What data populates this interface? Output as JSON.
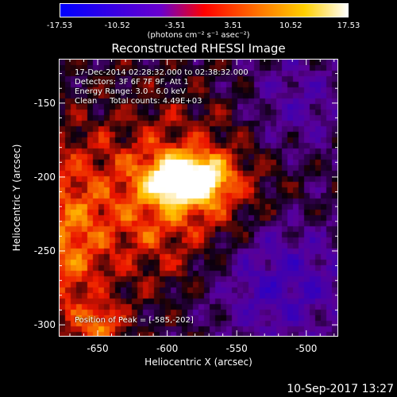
{
  "colorbar": {
    "min": -17.53,
    "max": 17.53,
    "tick_labels": [
      "-17.53",
      "-10.52",
      "-3.51",
      "3.51",
      "10.52",
      "17.53"
    ],
    "units": "(photons cm⁻² s⁻¹ asec⁻²)",
    "colors": [
      "#0000ff",
      "#7f00ff",
      "#ff0000",
      "#ff8000",
      "#ffff00",
      "#ffffff"
    ]
  },
  "title": "Reconstructed RHESSI Image",
  "info": {
    "time_range": "17-Dec-2014 02:28:32.000 to 02:38:32.000",
    "detectors": "Detectors: 3F 6F 7F 9F, Att 1",
    "energy": "Energy Range: 3.0 - 6.0 keV",
    "clean": "Clean     Total counts: 4.49E+03",
    "peak": "Position of Peak = [-585,-202]"
  },
  "axes": {
    "xlabel": "Heliocentric X (arcsec)",
    "ylabel": "Heliocentric Y (arcsec)",
    "xlim": [
      -678,
      -477
    ],
    "ylim": [
      -308,
      -120
    ],
    "xticks": [
      -650,
      -600,
      -550,
      -500
    ],
    "xtick_labels": [
      "-650",
      "-600",
      "-550",
      "-500"
    ],
    "yticks": [
      -150,
      -200,
      -250,
      -300
    ],
    "ytick_labels": [
      "-150",
      "-200",
      "-250",
      "-300"
    ]
  },
  "image": {
    "peak_x": -585,
    "peak_y": -202
  },
  "datestamp": "10-Sep-2017 13:27"
}
